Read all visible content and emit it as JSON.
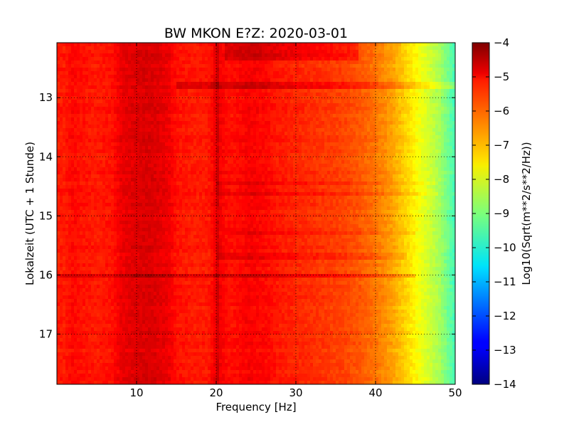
{
  "chart_data": {
    "type": "heatmap",
    "title": "BW MKON E?Z: 2020-03-01",
    "xlabel": "Frequency [Hz]",
    "ylabel": "Lokalzeit (UTC + 1 Stunde)",
    "colorbar_label": "Log10(Sqrt(m**2/s**2/Hz))",
    "xlim": [
      0,
      50
    ],
    "ylim": [
      17.85,
      12.07
    ],
    "y_inverted": true,
    "x_ticks": [
      {
        "value": 10,
        "label": "10"
      },
      {
        "value": 20,
        "label": "20"
      },
      {
        "value": 30,
        "label": "30"
      },
      {
        "value": 40,
        "label": "40"
      },
      {
        "value": 50,
        "label": "50"
      }
    ],
    "y_ticks": [
      {
        "value": 13,
        "label": "13"
      },
      {
        "value": 14,
        "label": "14"
      },
      {
        "value": 15,
        "label": "15"
      },
      {
        "value": 16,
        "label": "16"
      },
      {
        "value": 17,
        "label": "17"
      }
    ],
    "colorbar": {
      "range": [
        -14,
        -4
      ],
      "colormap": "jet",
      "ticks": [
        {
          "value": -4,
          "label": "−4"
        },
        {
          "value": -5,
          "label": "−5"
        },
        {
          "value": -6,
          "label": "−6"
        },
        {
          "value": -7,
          "label": "−7"
        },
        {
          "value": -8,
          "label": "−8"
        },
        {
          "value": -9,
          "label": "−9"
        },
        {
          "value": -10,
          "label": "−10"
        },
        {
          "value": -11,
          "label": "−11"
        },
        {
          "value": -12,
          "label": "−12"
        },
        {
          "value": -13,
          "label": "−13"
        },
        {
          "value": -14,
          "label": "−14"
        }
      ]
    },
    "grid": true,
    "grid_style": "dotted",
    "spectrum_profile": {
      "frequency_hz": [
        0,
        1,
        2,
        3,
        5,
        7,
        8,
        9,
        10,
        11,
        12,
        13,
        14,
        15,
        17,
        19,
        19.8,
        20,
        20.3,
        21,
        22,
        24,
        26,
        28,
        30,
        32,
        34,
        36,
        38,
        40,
        41,
        42,
        43,
        44,
        45,
        46,
        47,
        48,
        49,
        50
      ],
      "log10_amplitude": [
        -5.5,
        -5.5,
        -5.3,
        -5.4,
        -5.5,
        -5.4,
        -5.1,
        -5.0,
        -4.9,
        -4.9,
        -4.9,
        -5.0,
        -5.1,
        -5.4,
        -5.5,
        -5.5,
        -5.2,
        -4.4,
        -5.1,
        -5.3,
        -5.4,
        -5.2,
        -5.3,
        -5.5,
        -5.6,
        -5.7,
        -5.8,
        -5.9,
        -6.1,
        -6.4,
        -6.6,
        -6.8,
        -7.1,
        -7.4,
        -7.7,
        -8.0,
        -8.3,
        -8.6,
        -9.1,
        -9.6
      ]
    },
    "bands": [
      {
        "time_start": 12.07,
        "time_end": 12.35,
        "freq_start": 21,
        "freq_end": 38,
        "delta": 0.45
      },
      {
        "time_start": 12.72,
        "time_end": 12.88,
        "freq_start": 15,
        "freq_end": 50,
        "delta": 0.5
      },
      {
        "time_start": 14.42,
        "time_end": 14.5,
        "freq_start": 20,
        "freq_end": 48,
        "delta": 0.3
      },
      {
        "time_start": 14.62,
        "time_end": 14.68,
        "freq_start": 20,
        "freq_end": 48,
        "delta": 0.25
      },
      {
        "time_start": 15.25,
        "time_end": 15.32,
        "freq_start": 21,
        "freq_end": 45,
        "delta": 0.25
      },
      {
        "time_start": 15.65,
        "time_end": 15.72,
        "freq_start": 20,
        "freq_end": 44,
        "delta": 0.3
      },
      {
        "time_start": 16.0,
        "time_end": 16.05,
        "freq_start": 0,
        "freq_end": 45,
        "delta": 0.55
      },
      {
        "time_start": 16.2,
        "time_end": 16.25,
        "freq_start": 24,
        "freq_end": 37,
        "delta": 0.5
      },
      {
        "time_start": 16.5,
        "time_end": 16.55,
        "freq_start": 23,
        "freq_end": 30,
        "delta": 0.55
      }
    ]
  }
}
